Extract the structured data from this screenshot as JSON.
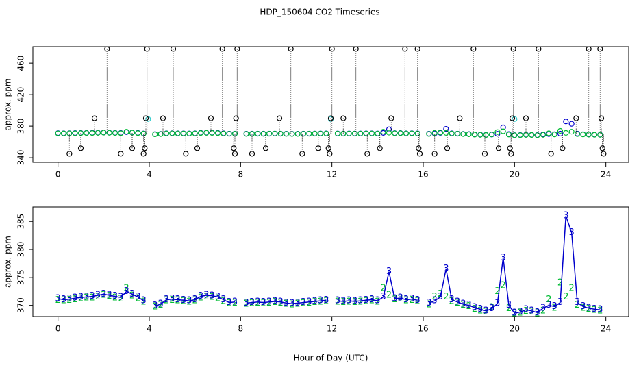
{
  "title": "HDP_150604  CO2 Timeseries",
  "chart_data": [
    {
      "type": "scatter",
      "y_label": "approx. ppm",
      "xlim": [
        -1.1,
        25
      ],
      "xticks": [
        0,
        4,
        8,
        12,
        16,
        20,
        24
      ],
      "ylim": [
        334,
        481
      ],
      "yticks": [
        340,
        380,
        420,
        460
      ],
      "x": [
        0,
        0.25,
        0.5,
        0.75,
        1,
        1.25,
        1.5,
        1.75,
        2,
        2.25,
        2.5,
        2.75,
        3,
        3.25,
        3.5,
        3.75,
        4,
        4.25,
        4.5,
        4.75,
        5,
        5.25,
        5.5,
        5.75,
        6,
        6.25,
        6.5,
        6.75,
        7,
        7.25,
        7.5,
        7.75,
        8,
        8.25,
        8.5,
        8.75,
        9,
        9.25,
        9.5,
        9.75,
        10,
        10.25,
        10.5,
        10.75,
        11,
        11.25,
        11.5,
        11.75,
        12,
        12.25,
        12.5,
        12.75,
        13,
        13.25,
        13.5,
        13.75,
        14,
        14.25,
        14.5,
        14.75,
        15,
        15.25,
        15.5,
        15.75,
        16,
        16.25,
        16.5,
        16.75,
        17,
        17.25,
        17.5,
        17.75,
        18,
        18.25,
        18.5,
        18.75,
        19,
        19.25,
        19.5,
        19.75,
        20,
        20.25,
        20.5,
        20.75,
        21,
        21.25,
        21.5,
        21.75,
        22,
        22.25,
        22.5,
        22.75,
        23,
        23.25,
        23.5,
        23.75
      ],
      "series": [
        {
          "color": "#0000cc",
          "values": [
            371.2,
            371.0,
            371.1,
            371.3,
            371.4,
            371.5,
            371.6,
            371.8,
            372.0,
            371.8,
            371.6,
            371.4,
            372.5,
            372.0,
            371.5,
            370.8,
            null,
            369.9,
            370.2,
            371.0,
            371.1,
            371.0,
            370.9,
            370.8,
            371.0,
            371.6,
            371.8,
            371.7,
            371.5,
            371.0,
            370.5,
            370.6,
            null,
            370.4,
            370.5,
            370.6,
            370.5,
            370.6,
            370.7,
            370.6,
            370.4,
            370.3,
            370.4,
            370.5,
            370.6,
            370.7,
            370.8,
            370.9,
            null,
            370.8,
            370.7,
            370.8,
            370.7,
            370.8,
            370.9,
            371.0,
            370.8,
            371.5,
            376.0,
            371.2,
            371.3,
            371.0,
            371.1,
            370.9,
            null,
            370.4,
            370.8,
            371.5,
            376.5,
            371.0,
            370.6,
            370.2,
            370.0,
            369.6,
            369.3,
            369.0,
            369.4,
            370.3,
            378.5,
            370.0,
            368.6,
            368.8,
            369.2,
            369.0,
            368.7,
            369.5,
            370.0,
            369.8,
            370.5,
            386.0,
            383.0,
            370.5,
            369.8,
            369.5,
            369.3,
            369.2
          ]
        },
        {
          "color": "#00bb33",
          "values": [
            370.9,
            370.8,
            370.9,
            371.0,
            371.2,
            371.3,
            371.3,
            371.5,
            371.8,
            371.6,
            371.3,
            371.1,
            373.0,
            371.7,
            371.2,
            370.6,
            null,
            369.7,
            370.0,
            370.8,
            370.9,
            370.8,
            370.7,
            370.6,
            370.8,
            371.3,
            371.5,
            371.4,
            371.2,
            370.7,
            370.3,
            370.4,
            null,
            370.2,
            370.3,
            370.4,
            370.3,
            370.4,
            370.5,
            370.4,
            370.2,
            370.1,
            370.2,
            370.3,
            370.4,
            370.5,
            370.6,
            370.7,
            null,
            370.6,
            370.5,
            370.6,
            370.5,
            370.6,
            370.7,
            370.8,
            370.6,
            373.0,
            371.8,
            371.0,
            371.1,
            370.8,
            370.9,
            370.7,
            null,
            370.1,
            371.5,
            372.0,
            371.5,
            370.7,
            370.4,
            370.0,
            369.8,
            369.3,
            369.0,
            368.8,
            369.6,
            372.5,
            373.5,
            369.4,
            368.5,
            368.6,
            368.9,
            368.8,
            368.5,
            369.0,
            371.0,
            369.5,
            374.0,
            371.5,
            373.0,
            370.0,
            369.5,
            369.3,
            369.1,
            369.0
          ]
        },
        {
          "color": "#33cccc",
          "x": [
            3.95,
            11.95,
            20.0
          ],
          "values": [
            389,
            389,
            389
          ]
        },
        {
          "color": "#000000",
          "stems": "dotted",
          "x": [
            0.5,
            1.0,
            1.6,
            2.15,
            2.75,
            3.25,
            3.75,
            3.8,
            3.85,
            3.9,
            4.6,
            5.05,
            5.6,
            6.1,
            6.7,
            7.2,
            7.7,
            7.75,
            7.8,
            7.85,
            8.5,
            9.1,
            9.7,
            10.2,
            10.7,
            11.4,
            11.85,
            11.9,
            11.95,
            12.0,
            12.5,
            13.05,
            13.55,
            14.1,
            14.6,
            15.2,
            15.75,
            15.8,
            15.85,
            16.5,
            17.05,
            17.6,
            18.2,
            18.7,
            19.3,
            19.8,
            19.85,
            19.9,
            19.95,
            20.5,
            21.05,
            21.6,
            22.1,
            22.7,
            23.25,
            23.75,
            23.8,
            23.85,
            23.9
          ],
          "values": [
            345,
            352,
            390,
            478,
            345,
            352,
            345,
            352,
            390,
            478,
            390,
            478,
            345,
            352,
            390,
            478,
            352,
            345,
            390,
            478,
            345,
            352,
            390,
            478,
            345,
            352,
            352,
            345,
            390,
            478,
            390,
            478,
            345,
            352,
            390,
            478,
            478,
            352,
            345,
            345,
            352,
            390,
            478,
            345,
            352,
            352,
            345,
            390,
            478,
            390,
            478,
            345,
            352,
            390,
            478,
            478,
            390,
            352,
            345
          ]
        }
      ]
    },
    {
      "type": "line",
      "y_label": "approx. ppm",
      "x_label": "Hour of Day (UTC)",
      "xlim": [
        -1.1,
        25
      ],
      "xticks": [
        0,
        4,
        8,
        12,
        16,
        20,
        24
      ],
      "ylim": [
        368,
        387.6
      ],
      "yticks": [
        370,
        375,
        380,
        385
      ],
      "x": [
        0,
        0.25,
        0.5,
        0.75,
        1,
        1.25,
        1.5,
        1.75,
        2,
        2.25,
        2.5,
        2.75,
        3,
        3.25,
        3.5,
        3.75,
        4,
        4.25,
        4.5,
        4.75,
        5,
        5.25,
        5.5,
        5.75,
        6,
        6.25,
        6.5,
        6.75,
        7,
        7.25,
        7.5,
        7.75,
        8,
        8.25,
        8.5,
        8.75,
        9,
        9.25,
        9.5,
        9.75,
        10,
        10.25,
        10.5,
        10.75,
        11,
        11.25,
        11.5,
        11.75,
        12,
        12.25,
        12.5,
        12.75,
        13,
        13.25,
        13.5,
        13.75,
        14,
        14.25,
        14.5,
        14.75,
        15,
        15.25,
        15.5,
        15.75,
        16,
        16.25,
        16.5,
        16.75,
        17,
        17.25,
        17.5,
        17.75,
        18,
        18.25,
        18.5,
        18.75,
        19,
        19.25,
        19.5,
        19.75,
        20,
        20.25,
        20.5,
        20.75,
        21,
        21.25,
        21.5,
        21.75,
        22,
        22.25,
        22.5,
        22.75,
        23,
        23.25,
        23.5,
        23.75
      ],
      "series": [
        {
          "color": "#00bb33",
          "marker": "2",
          "values": [
            370.9,
            370.8,
            370.9,
            371.0,
            371.2,
            371.3,
            371.3,
            371.5,
            371.8,
            371.6,
            371.3,
            371.1,
            373.0,
            371.7,
            371.2,
            370.6,
            null,
            369.7,
            370.0,
            370.8,
            370.9,
            370.8,
            370.7,
            370.6,
            370.8,
            371.3,
            371.5,
            371.4,
            371.2,
            370.7,
            370.3,
            370.4,
            null,
            370.2,
            370.3,
            370.4,
            370.3,
            370.4,
            370.5,
            370.4,
            370.2,
            370.1,
            370.2,
            370.3,
            370.4,
            370.5,
            370.6,
            370.7,
            null,
            370.6,
            370.5,
            370.6,
            370.5,
            370.6,
            370.7,
            370.8,
            370.6,
            373.0,
            371.8,
            371.0,
            371.1,
            370.8,
            370.9,
            370.7,
            null,
            370.1,
            371.5,
            372.0,
            371.5,
            370.7,
            370.4,
            370.0,
            369.8,
            369.3,
            369.0,
            368.8,
            369.6,
            372.5,
            373.5,
            369.4,
            368.5,
            368.6,
            368.9,
            368.8,
            368.5,
            369.0,
            371.0,
            369.5,
            374.0,
            371.5,
            373.0,
            370.0,
            369.5,
            369.3,
            369.1,
            369.0
          ]
        },
        {
          "color": "#0000cc",
          "marker": "3",
          "line": true,
          "values": [
            371.2,
            371.0,
            371.1,
            371.3,
            371.4,
            371.5,
            371.6,
            371.8,
            372.0,
            371.8,
            371.6,
            371.4,
            372.5,
            372.0,
            371.5,
            370.8,
            null,
            369.9,
            370.2,
            371.0,
            371.1,
            371.0,
            370.9,
            370.8,
            371.0,
            371.6,
            371.8,
            371.7,
            371.5,
            371.0,
            370.5,
            370.6,
            null,
            370.4,
            370.5,
            370.6,
            370.5,
            370.6,
            370.7,
            370.6,
            370.4,
            370.3,
            370.4,
            370.5,
            370.6,
            370.7,
            370.8,
            370.9,
            null,
            370.8,
            370.7,
            370.8,
            370.7,
            370.8,
            370.9,
            371.0,
            370.8,
            371.5,
            376.0,
            371.2,
            371.3,
            371.0,
            371.1,
            370.9,
            null,
            370.4,
            370.8,
            371.5,
            376.5,
            371.0,
            370.6,
            370.2,
            370.0,
            369.6,
            369.3,
            369.0,
            369.4,
            370.3,
            378.5,
            370.0,
            368.6,
            368.8,
            369.2,
            369.0,
            368.7,
            369.5,
            370.0,
            369.8,
            370.5,
            386.0,
            383.0,
            370.5,
            369.8,
            369.5,
            369.3,
            369.2
          ]
        }
      ]
    }
  ]
}
